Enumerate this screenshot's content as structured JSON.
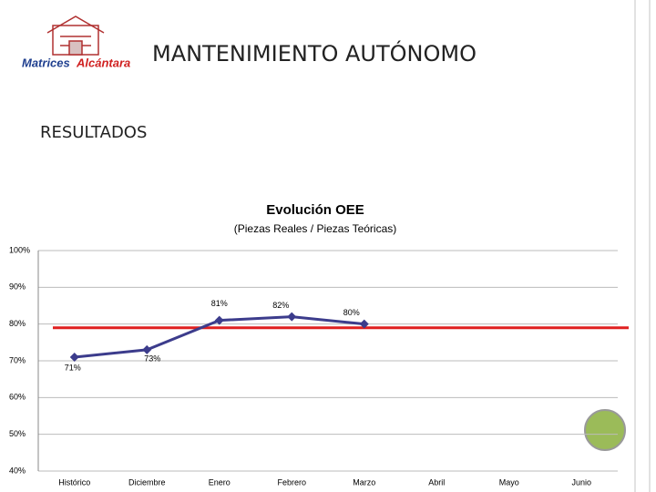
{
  "header": {
    "title": "MANTENIMIENTO AUTÓNOMO",
    "logo_text_1": "Matrices",
    "logo_text_2": "Alcántara"
  },
  "section": "RESULTADOS",
  "chart_data": {
    "type": "line",
    "title": "Evolución OEE",
    "subtitle": "(Piezas Reales / Piezas Teóricas)",
    "categories": [
      "Histórico",
      "Diciembre",
      "Enero",
      "Febrero",
      "Marzo",
      "Abril",
      "Mayo",
      "Junio"
    ],
    "series": [
      {
        "name": "OEE",
        "color": "#3c3c8c",
        "values": [
          71,
          73,
          81,
          82,
          80,
          null,
          null,
          null
        ],
        "value_labels": [
          "71%",
          "73%",
          "81%",
          "82%",
          "80%",
          null,
          null,
          null
        ]
      }
    ],
    "reference_line": {
      "value": 79,
      "color": "#e02020"
    },
    "ylim": [
      40,
      100
    ],
    "yticks": [
      {
        "value": 40,
        "label": "40%"
      },
      {
        "value": 50,
        "label": "50%"
      },
      {
        "value": 60,
        "label": "60%"
      },
      {
        "value": 70,
        "label": "70%"
      },
      {
        "value": 80,
        "label": "80%"
      },
      {
        "value": 90,
        "label": "90%"
      },
      {
        "value": 100,
        "label": "100%"
      }
    ],
    "grid": true
  }
}
